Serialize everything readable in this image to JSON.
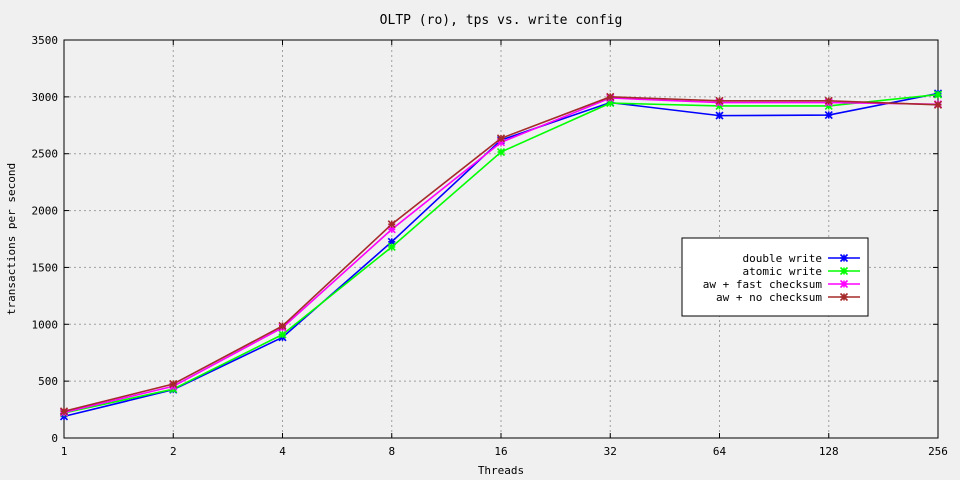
{
  "chart_data": {
    "type": "line",
    "title": "OLTP (ro), tps vs. write config",
    "xlabel": "Threads",
    "ylabel": "transactions per second",
    "x_scale": "log2",
    "categories": [
      "1",
      "2",
      "4",
      "8",
      "16",
      "32",
      "64",
      "128",
      "256"
    ],
    "x": [
      1,
      2,
      4,
      8,
      16,
      32,
      64,
      128,
      256
    ],
    "ylim": [
      0,
      3500
    ],
    "yticks": [
      0,
      500,
      1000,
      1500,
      2000,
      2500,
      3000,
      3500
    ],
    "grid": true,
    "legend_position": "right",
    "series": [
      {
        "name": "double write",
        "color": "#0000ff",
        "values": [
          190,
          425,
          885,
          1725,
          2620,
          2950,
          2835,
          2840,
          3030
        ]
      },
      {
        "name": "atomic write",
        "color": "#00ff00",
        "values": [
          220,
          430,
          910,
          1680,
          2515,
          2945,
          2920,
          2920,
          3020
        ]
      },
      {
        "name": "aw + fast checksum",
        "color": "#ff00ff",
        "values": [
          225,
          455,
          970,
          1835,
          2600,
          2990,
          2950,
          2950,
          2935
        ]
      },
      {
        "name": "aw + no checksum",
        "color": "#a52a2a",
        "values": [
          235,
          475,
          985,
          1880,
          2635,
          3000,
          2965,
          2965,
          2930
        ]
      }
    ]
  }
}
